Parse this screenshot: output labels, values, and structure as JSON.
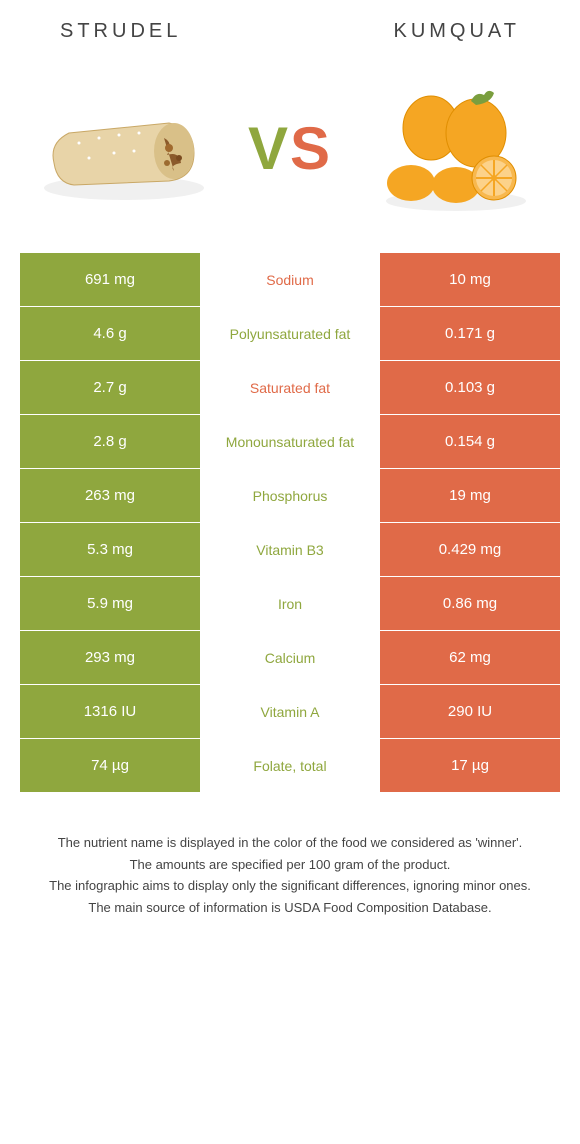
{
  "colors": {
    "left": "#8fa73e",
    "right": "#e06a48",
    "mid_left_text": "#8fa73e",
    "mid_right_text": "#e06a48"
  },
  "header": {
    "left_title": "Strudel",
    "right_title": "Kumquat",
    "vs_v": "V",
    "vs_s": "S"
  },
  "rows": [
    {
      "left": "691 mg",
      "label": "Sodium",
      "right": "10 mg",
      "winner": "right"
    },
    {
      "left": "4.6 g",
      "label": "Polyunsaturated fat",
      "right": "0.171 g",
      "winner": "left"
    },
    {
      "left": "2.7 g",
      "label": "Saturated fat",
      "right": "0.103 g",
      "winner": "right"
    },
    {
      "left": "2.8 g",
      "label": "Monounsaturated fat",
      "right": "0.154 g",
      "winner": "left"
    },
    {
      "left": "263 mg",
      "label": "Phosphorus",
      "right": "19 mg",
      "winner": "left"
    },
    {
      "left": "5.3 mg",
      "label": "Vitamin B3",
      "right": "0.429 mg",
      "winner": "left"
    },
    {
      "left": "5.9 mg",
      "label": "Iron",
      "right": "0.86 mg",
      "winner": "left"
    },
    {
      "left": "293 mg",
      "label": "Calcium",
      "right": "62 mg",
      "winner": "left"
    },
    {
      "left": "1316 IU",
      "label": "Vitamin A",
      "right": "290 IU",
      "winner": "left"
    },
    {
      "left": "74 µg",
      "label": "Folate, total",
      "right": "17 µg",
      "winner": "left"
    }
  ],
  "footer": {
    "line1": "The nutrient name is displayed in the color of the food we considered as 'winner'.",
    "line2": "The amounts are specified per 100 gram of the product.",
    "line3": "The infographic aims to display only the significant differences, ignoring minor ones.",
    "line4": "The main source of information is USDA Food Composition Database."
  }
}
